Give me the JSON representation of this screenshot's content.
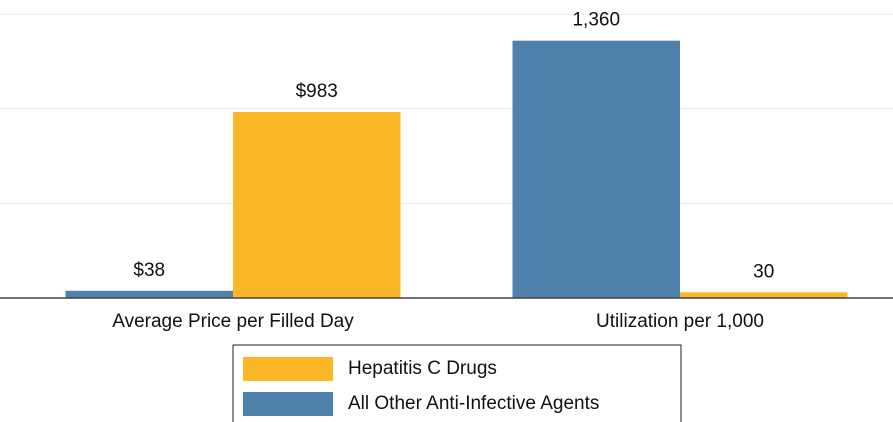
{
  "chart_data": {
    "type": "bar",
    "categories": [
      "Average Price per Filled Day",
      "Utilization per 1,000"
    ],
    "series": [
      {
        "name": "All Other Anti-Infective Agents",
        "color": "#4e81ab",
        "values": [
          38,
          1360
        ],
        "value_labels": [
          "$38",
          "1,360"
        ]
      },
      {
        "name": "Hepatitis C Drugs",
        "color": "#fbb726",
        "values": [
          983,
          30
        ],
        "value_labels": [
          "$983",
          "30"
        ]
      }
    ],
    "ylim": [
      0,
      1575
    ],
    "gridlines": [
      500,
      1000,
      1500
    ],
    "grid": true
  }
}
